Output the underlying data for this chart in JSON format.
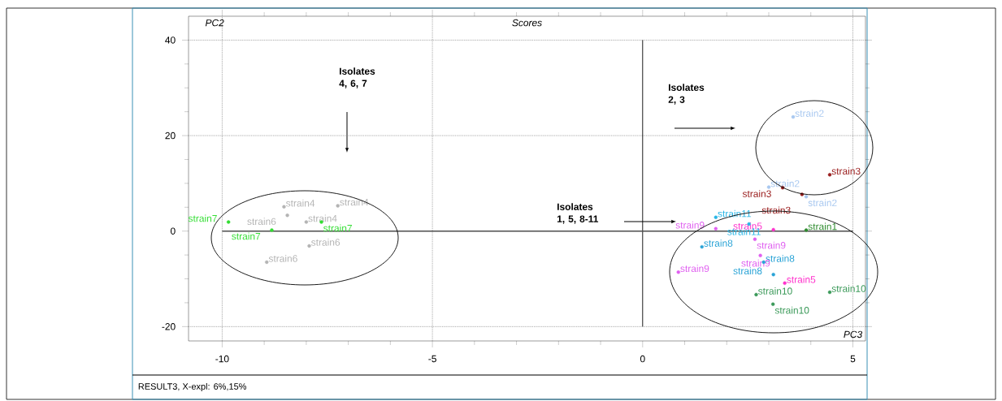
{
  "chart_data": {
    "type": "scatter",
    "title": "Scores",
    "xlabel": "PC3",
    "ylabel": "PC2",
    "xlim": [
      -10.8,
      5.3
    ],
    "ylim": [
      -23,
      45
    ],
    "xticks": [
      -10,
      -5,
      0,
      5
    ],
    "yticks": [
      -20,
      0,
      20,
      40
    ],
    "grid": true,
    "ref_lines": [
      {
        "axis": "x",
        "value": 0
      },
      {
        "axis": "y",
        "value": 0
      }
    ],
    "series": [
      {
        "name": "strain1",
        "color": "#2e8b2e",
        "x": [
          3.89
        ],
        "values": [
          0.2
        ]
      },
      {
        "name": "strain2",
        "color": "#a8c8f0",
        "x": [
          3.58,
          3.0,
          3.89
        ],
        "values": [
          23.9,
          9.2,
          7.2
        ]
      },
      {
        "name": "strain3",
        "color": "#9b2020",
        "x": [
          3.33,
          4.45,
          3.79
        ],
        "values": [
          9.1,
          11.8,
          7.7
        ]
      },
      {
        "name": "strain4",
        "color": "#b4b4b4",
        "x": [
          -8.53,
          -7.25,
          -8.0
        ],
        "values": [
          5.1,
          5.3,
          1.9
        ]
      },
      {
        "name": "strain5",
        "color": "#ff33cc",
        "x": [
          3.11,
          3.38
        ],
        "values": [
          0.3,
          -10.9
        ]
      },
      {
        "name": "strain6",
        "color": "#b4b4b4",
        "x": [
          -8.45,
          -7.93,
          -8.94
        ],
        "values": [
          3.3,
          -3.1,
          -6.5
        ]
      },
      {
        "name": "strain7",
        "color": "#33dd33",
        "x": [
          -9.85,
          -8.82,
          -7.64
        ],
        "values": [
          1.9,
          0.2,
          1.9
        ]
      },
      {
        "name": "strain8",
        "color": "#29a3d6",
        "x": [
          1.41,
          2.88,
          3.11
        ],
        "values": [
          -3.3,
          -6.5,
          -9.1
        ]
      },
      {
        "name": "strain9",
        "color": "#e060f0",
        "x": [
          1.74,
          2.67,
          2.8,
          0.85
        ],
        "values": [
          0.5,
          -1.7,
          -5.1,
          -8.6
        ]
      },
      {
        "name": "strain10",
        "color": "#3c9a5a",
        "x": [
          2.7,
          3.1,
          4.45
        ],
        "values": [
          -13.3,
          -15.3,
          -12.8
        ]
      },
      {
        "name": "strain11",
        "color": "#29b6e6",
        "x": [
          1.74,
          2.53
        ],
        "values": [
          2.9,
          1.5
        ]
      }
    ],
    "annotations": [
      "Isolates 4, 6, 7",
      "Isolates 2, 3",
      "Isolates 1, 5, 8-11",
      "RESULT3, X-expl: 6%,15%"
    ]
  }
}
